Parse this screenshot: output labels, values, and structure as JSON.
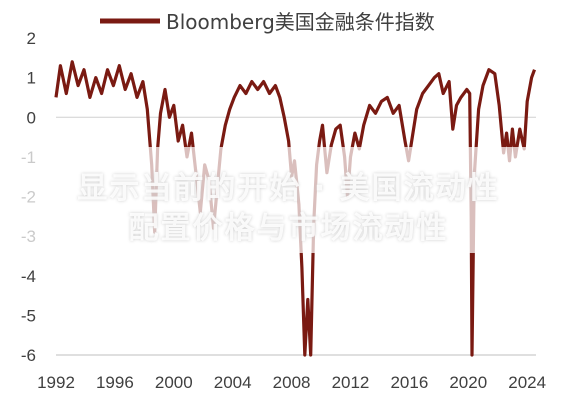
{
  "chart_data": {
    "type": "line",
    "title": "",
    "xlabel": "",
    "ylabel": "",
    "xlim": [
      1992,
      2024.6
    ],
    "ylim": [
      -6,
      2
    ],
    "x_ticks": [
      "1992",
      "1996",
      "2000",
      "2004",
      "2008",
      "2012",
      "2016",
      "2020",
      "2024"
    ],
    "y_ticks": [
      "2",
      "1",
      "0",
      "-1",
      "-2",
      "-3",
      "-4",
      "-5",
      "-6"
    ],
    "grid": false,
    "legend_position": "top-center",
    "series": [
      {
        "name": "Bloomberg美国金融条件指数",
        "color": "#7a1a12",
        "points": [
          [
            1992.0,
            0.5
          ],
          [
            1992.3,
            1.3
          ],
          [
            1992.7,
            0.6
          ],
          [
            1993.1,
            1.4
          ],
          [
            1993.5,
            0.8
          ],
          [
            1993.9,
            1.2
          ],
          [
            1994.3,
            0.5
          ],
          [
            1994.7,
            1.0
          ],
          [
            1995.1,
            0.6
          ],
          [
            1995.5,
            1.2
          ],
          [
            1995.9,
            0.8
          ],
          [
            1996.3,
            1.3
          ],
          [
            1996.7,
            0.7
          ],
          [
            1997.1,
            1.1
          ],
          [
            1997.5,
            0.5
          ],
          [
            1997.9,
            0.9
          ],
          [
            1998.2,
            0.2
          ],
          [
            1998.5,
            -1.2
          ],
          [
            1998.7,
            -2.9
          ],
          [
            1998.9,
            -0.8
          ],
          [
            1999.1,
            0.1
          ],
          [
            1999.4,
            0.7
          ],
          [
            1999.7,
            0.0
          ],
          [
            2000.0,
            0.3
          ],
          [
            2000.3,
            -0.6
          ],
          [
            2000.6,
            -0.2
          ],
          [
            2000.9,
            -1.0
          ],
          [
            2001.2,
            -0.4
          ],
          [
            2001.5,
            -1.4
          ],
          [
            2001.8,
            -2.4
          ],
          [
            2002.1,
            -1.2
          ],
          [
            2002.4,
            -1.6
          ],
          [
            2002.7,
            -2.8
          ],
          [
            2002.95,
            -1.8
          ],
          [
            2003.2,
            -0.8
          ],
          [
            2003.5,
            -0.2
          ],
          [
            2003.8,
            0.2
          ],
          [
            2004.1,
            0.5
          ],
          [
            2004.5,
            0.8
          ],
          [
            2004.9,
            0.6
          ],
          [
            2005.3,
            0.9
          ],
          [
            2005.7,
            0.7
          ],
          [
            2006.1,
            0.9
          ],
          [
            2006.5,
            0.6
          ],
          [
            2006.9,
            0.8
          ],
          [
            2007.2,
            0.5
          ],
          [
            2007.5,
            0.0
          ],
          [
            2007.8,
            -0.6
          ],
          [
            2008.0,
            -1.5
          ],
          [
            2008.2,
            -1.1
          ],
          [
            2008.5,
            -2.2
          ],
          [
            2008.7,
            -3.8
          ],
          [
            2008.9,
            -6.0
          ],
          [
            2009.1,
            -4.6
          ],
          [
            2009.3,
            -6.0
          ],
          [
            2009.5,
            -2.7
          ],
          [
            2009.7,
            -1.2
          ],
          [
            2009.9,
            -0.6
          ],
          [
            2010.1,
            -0.2
          ],
          [
            2010.4,
            -1.4
          ],
          [
            2010.7,
            -0.7
          ],
          [
            2011.0,
            -0.3
          ],
          [
            2011.3,
            -0.2
          ],
          [
            2011.6,
            -1.0
          ],
          [
            2011.8,
            -2.0
          ],
          [
            2012.0,
            -1.0
          ],
          [
            2012.3,
            -0.4
          ],
          [
            2012.6,
            -0.8
          ],
          [
            2012.9,
            -0.2
          ],
          [
            2013.3,
            0.3
          ],
          [
            2013.7,
            0.1
          ],
          [
            2014.1,
            0.4
          ],
          [
            2014.5,
            0.5
          ],
          [
            2014.9,
            0.1
          ],
          [
            2015.3,
            0.3
          ],
          [
            2015.7,
            -0.6
          ],
          [
            2015.95,
            -1.1
          ],
          [
            2016.2,
            -0.5
          ],
          [
            2016.5,
            0.2
          ],
          [
            2016.9,
            0.6
          ],
          [
            2017.3,
            0.8
          ],
          [
            2017.7,
            1.0
          ],
          [
            2018.0,
            1.1
          ],
          [
            2018.3,
            0.6
          ],
          [
            2018.7,
            0.9
          ],
          [
            2018.95,
            -0.3
          ],
          [
            2019.2,
            0.3
          ],
          [
            2019.5,
            0.5
          ],
          [
            2019.9,
            0.7
          ],
          [
            2020.1,
            0.6
          ],
          [
            2020.2,
            -2.5
          ],
          [
            2020.25,
            -6.0
          ],
          [
            2020.4,
            -1.5
          ],
          [
            2020.7,
            0.2
          ],
          [
            2021.0,
            0.8
          ],
          [
            2021.4,
            1.2
          ],
          [
            2021.8,
            1.1
          ],
          [
            2022.1,
            0.3
          ],
          [
            2022.4,
            -0.9
          ],
          [
            2022.6,
            -0.4
          ],
          [
            2022.8,
            -1.1
          ],
          [
            2023.0,
            -0.3
          ],
          [
            2023.2,
            -1.0
          ],
          [
            2023.5,
            -0.3
          ],
          [
            2023.8,
            -0.8
          ],
          [
            2024.0,
            0.4
          ],
          [
            2024.3,
            1.0
          ],
          [
            2024.5,
            1.2
          ]
        ]
      }
    ]
  },
  "overlay": {
    "line1": "显示当前的开始 · 美国流动性",
    "line2": "配置价格与市场流动性"
  }
}
